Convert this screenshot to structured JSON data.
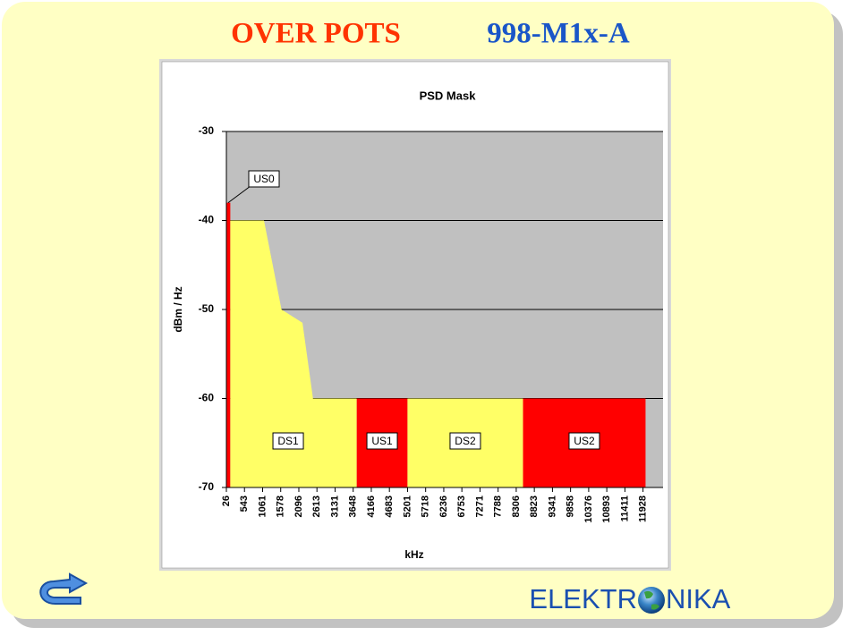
{
  "header": {
    "title": "OVER POTS",
    "code": "998-M1x-A"
  },
  "logo": {
    "left": "ELEKTR",
    "right": "NIKA"
  },
  "chart_data": {
    "type": "area",
    "title": "PSD Mask",
    "x_label": "kHz",
    "y_label": "dBm / Hz",
    "xlim": [
      26,
      12500
    ],
    "ylim": [
      -70,
      -30
    ],
    "yticks": [
      -30,
      -40,
      -50,
      -60,
      -70
    ],
    "xticks": [
      26,
      543,
      1061,
      1578,
      2096,
      2613,
      3131,
      3648,
      4166,
      4683,
      5201,
      5718,
      6236,
      6753,
      7271,
      7788,
      8306,
      8823,
      9341,
      9858,
      10376,
      10893,
      11411,
      11928
    ],
    "grid": true,
    "background": "#c0c0c0",
    "series": [
      {
        "name": "US0",
        "color": "#ff0000",
        "x": [
          26,
          138
        ],
        "values": [
          -38,
          -38
        ]
      },
      {
        "name": "DS1",
        "color": "#ffff66",
        "x": [
          138,
          1100,
          1600,
          2200,
          2500,
          3750
        ],
        "values": [
          -40,
          -40,
          -50,
          -51.5,
          -60,
          -60
        ]
      },
      {
        "name": "US1",
        "color": "#ff0000",
        "x": [
          3750,
          5200
        ],
        "values": [
          -60,
          -60
        ]
      },
      {
        "name": "DS2",
        "color": "#ffff66",
        "x": [
          5200,
          8500
        ],
        "values": [
          -60,
          -60
        ]
      },
      {
        "name": "US2",
        "color": "#ff0000",
        "x": [
          8500,
          12000
        ],
        "values": [
          -60,
          -60
        ]
      }
    ]
  }
}
